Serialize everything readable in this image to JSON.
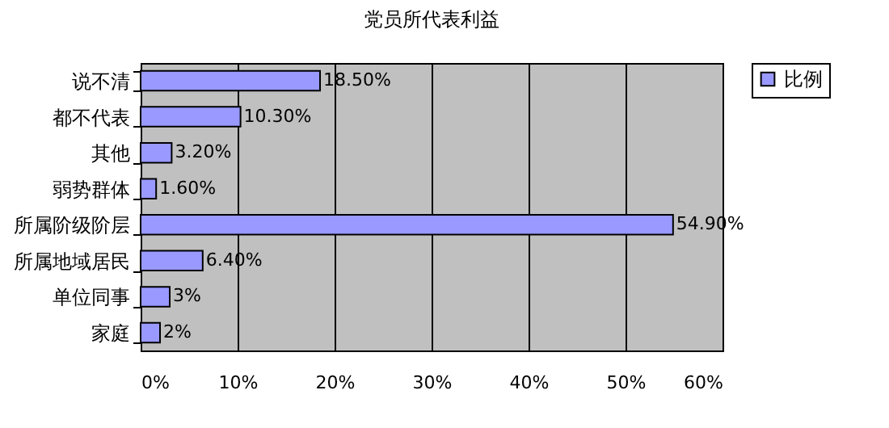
{
  "chart_data": {
    "type": "bar",
    "orientation": "horizontal",
    "title": "党员所代表利益",
    "categories": [
      "说不清",
      "都不代表",
      "其他",
      "弱势群体",
      "所属阶级阶层",
      "所属地域居民",
      "单位同事",
      "家庭"
    ],
    "series": [
      {
        "name": "比例",
        "color": "#9999ff",
        "values": [
          18.5,
          10.3,
          3.2,
          1.6,
          54.9,
          6.4,
          3,
          2
        ],
        "value_labels": [
          "18.50%",
          "10.30%",
          "3.20%",
          "1.60%",
          "54.90%",
          "6.40%",
          "3%",
          "2%"
        ]
      }
    ],
    "xlim": [
      0,
      60
    ],
    "xticks": [
      {
        "value": 0,
        "label": "0%"
      },
      {
        "value": 10,
        "label": "10%"
      },
      {
        "value": 20,
        "label": "20%"
      },
      {
        "value": 30,
        "label": "30%"
      },
      {
        "value": 40,
        "label": "40%"
      },
      {
        "value": 50,
        "label": "50%"
      },
      {
        "value": 60,
        "label": "60%"
      }
    ],
    "grid": "x",
    "legend": "right"
  }
}
